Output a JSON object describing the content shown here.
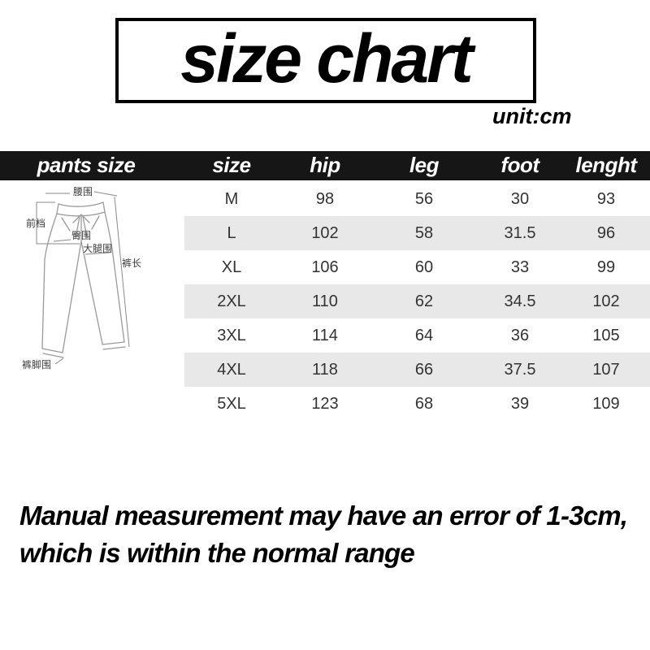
{
  "page": {
    "title": "size chart",
    "unit_label": "unit:cm"
  },
  "table": {
    "diagram_column_header": "pants size",
    "column_headers": [
      "size",
      "hip",
      "leg",
      "foot",
      "lenght"
    ],
    "rows": [
      [
        "M",
        "98",
        "56",
        "30",
        "93"
      ],
      [
        "L",
        "102",
        "58",
        "31.5",
        "96"
      ],
      [
        "XL",
        "106",
        "60",
        "33",
        "99"
      ],
      [
        "2XL",
        "110",
        "62",
        "34.5",
        "102"
      ],
      [
        "3XL",
        "114",
        "64",
        "36",
        "105"
      ],
      [
        "4XL",
        "118",
        "66",
        "37.5",
        "107"
      ],
      [
        "5XL",
        "123",
        "68",
        "39",
        "109"
      ]
    ]
  },
  "diagram": {
    "labels": {
      "waist": "腰围",
      "front_rise": "前档",
      "hip": "臀围",
      "thigh": "大腿围",
      "pants_length": "裤长",
      "leg_opening": "裤脚围"
    }
  },
  "note": {
    "line1": "Manual measurement may have an error of 1-3cm,",
    "line2": "which is within the normal range"
  },
  "colors": {
    "header_bar_bg": "#161616",
    "header_text": "#ffffff",
    "row_stripe": "#e8e8e8",
    "cell_text": "#333333",
    "title_text": "#000000"
  }
}
